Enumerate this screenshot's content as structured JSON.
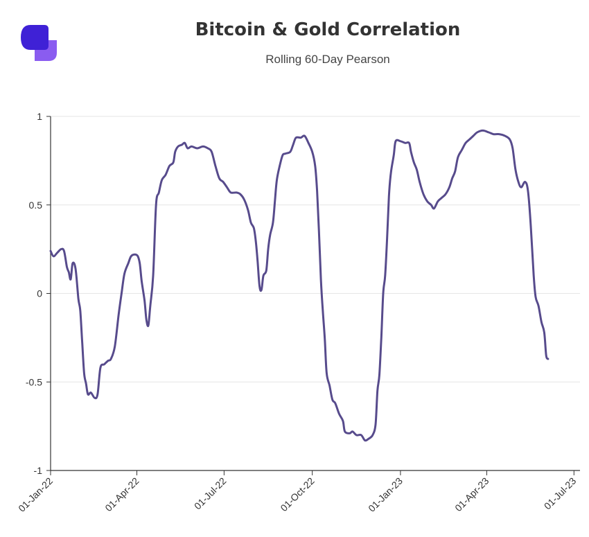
{
  "header": {
    "title": "Bitcoin & Gold Correlation",
    "subtitle": "Rolling 60-Day Pearson"
  },
  "colors": {
    "line": "#574b8c",
    "logo_dark": "#3f21d6",
    "logo_light": "#8a5cf0",
    "grid": "#e6e6e6",
    "axis": "#333333"
  },
  "chart_data": {
    "type": "line",
    "title": "Bitcoin & Gold Correlation",
    "subtitle": "Rolling 60-Day Pearson",
    "xlabel": "",
    "ylabel": "",
    "ylim": [
      -1,
      1
    ],
    "grid": true,
    "y_ticks": [
      1,
      0.5,
      0,
      -0.5,
      -1
    ],
    "y_tick_labels": [
      "1",
      "0.5",
      "0",
      "-0.5",
      "-1"
    ],
    "x_ticks": [
      "2022-01-01",
      "2022-04-01",
      "2022-07-01",
      "2022-10-01",
      "2023-01-01",
      "2023-04-01",
      "2023-07-01"
    ],
    "x_tick_labels": [
      "01-Jan-22",
      "01-Apr-22",
      "01-Jul-22",
      "01-Oct-22",
      "01-Jan-23",
      "01-Apr-23",
      "01-Jul-23"
    ],
    "series": [
      {
        "points": [
          [
            "2022-01-01",
            0.24
          ],
          [
            "2022-01-04",
            0.21
          ],
          [
            "2022-01-08",
            0.23
          ],
          [
            "2022-01-12",
            0.25
          ],
          [
            "2022-01-15",
            0.24
          ],
          [
            "2022-01-18",
            0.15
          ],
          [
            "2022-01-20",
            0.12
          ],
          [
            "2022-01-22",
            0.08
          ],
          [
            "2022-01-24",
            0.17
          ],
          [
            "2022-01-27",
            0.14
          ],
          [
            "2022-01-30",
            -0.03
          ],
          [
            "2022-02-01",
            -0.1
          ],
          [
            "2022-02-03",
            -0.28
          ],
          [
            "2022-02-05",
            -0.45
          ],
          [
            "2022-02-07",
            -0.51
          ],
          [
            "2022-02-09",
            -0.57
          ],
          [
            "2022-02-12",
            -0.56
          ],
          [
            "2022-02-16",
            -0.59
          ],
          [
            "2022-02-19",
            -0.57
          ],
          [
            "2022-02-22",
            -0.42
          ],
          [
            "2022-02-26",
            -0.4
          ],
          [
            "2022-03-02",
            -0.38
          ],
          [
            "2022-03-05",
            -0.37
          ],
          [
            "2022-03-09",
            -0.3
          ],
          [
            "2022-03-13",
            -0.12
          ],
          [
            "2022-03-16",
            0.0
          ],
          [
            "2022-03-19",
            0.11
          ],
          [
            "2022-03-23",
            0.17
          ],
          [
            "2022-03-26",
            0.21
          ],
          [
            "2022-03-30",
            0.22
          ],
          [
            "2022-04-02",
            0.21
          ],
          [
            "2022-04-04",
            0.17
          ],
          [
            "2022-04-06",
            0.07
          ],
          [
            "2022-04-09",
            -0.04
          ],
          [
            "2022-04-11",
            -0.15
          ],
          [
            "2022-04-13",
            -0.18
          ],
          [
            "2022-04-15",
            -0.07
          ],
          [
            "2022-04-18",
            0.1
          ],
          [
            "2022-04-21",
            0.5
          ],
          [
            "2022-04-24",
            0.57
          ],
          [
            "2022-04-27",
            0.64
          ],
          [
            "2022-05-01",
            0.67
          ],
          [
            "2022-05-05",
            0.72
          ],
          [
            "2022-05-09",
            0.74
          ],
          [
            "2022-05-11",
            0.8
          ],
          [
            "2022-05-14",
            0.83
          ],
          [
            "2022-05-18",
            0.84
          ],
          [
            "2022-05-21",
            0.85
          ],
          [
            "2022-05-24",
            0.82
          ],
          [
            "2022-05-28",
            0.83
          ],
          [
            "2022-06-03",
            0.82
          ],
          [
            "2022-06-09",
            0.83
          ],
          [
            "2022-06-14",
            0.82
          ],
          [
            "2022-06-18",
            0.8
          ],
          [
            "2022-06-22",
            0.72
          ],
          [
            "2022-06-26",
            0.65
          ],
          [
            "2022-06-30",
            0.63
          ],
          [
            "2022-07-04",
            0.6
          ],
          [
            "2022-07-08",
            0.57
          ],
          [
            "2022-07-14",
            0.57
          ],
          [
            "2022-07-18",
            0.56
          ],
          [
            "2022-07-22",
            0.53
          ],
          [
            "2022-07-26",
            0.47
          ],
          [
            "2022-07-29",
            0.4
          ],
          [
            "2022-08-01",
            0.37
          ],
          [
            "2022-08-03",
            0.3
          ],
          [
            "2022-08-05",
            0.18
          ],
          [
            "2022-08-07",
            0.04
          ],
          [
            "2022-08-09",
            0.02
          ],
          [
            "2022-08-11",
            0.1
          ],
          [
            "2022-08-14",
            0.13
          ],
          [
            "2022-08-16",
            0.25
          ],
          [
            "2022-08-18",
            0.33
          ],
          [
            "2022-08-21",
            0.4
          ],
          [
            "2022-08-23",
            0.52
          ],
          [
            "2022-08-25",
            0.64
          ],
          [
            "2022-08-28",
            0.72
          ],
          [
            "2022-08-31",
            0.78
          ],
          [
            "2022-09-03",
            0.79
          ],
          [
            "2022-09-08",
            0.8
          ],
          [
            "2022-09-11",
            0.84
          ],
          [
            "2022-09-14",
            0.88
          ],
          [
            "2022-09-19",
            0.88
          ],
          [
            "2022-09-23",
            0.89
          ],
          [
            "2022-09-27",
            0.85
          ],
          [
            "2022-10-01",
            0.8
          ],
          [
            "2022-10-04",
            0.72
          ],
          [
            "2022-10-06",
            0.58
          ],
          [
            "2022-10-08",
            0.35
          ],
          [
            "2022-10-10",
            0.08
          ],
          [
            "2022-10-12",
            -0.1
          ],
          [
            "2022-10-14",
            -0.25
          ],
          [
            "2022-10-16",
            -0.45
          ],
          [
            "2022-10-19",
            -0.52
          ],
          [
            "2022-10-22",
            -0.6
          ],
          [
            "2022-10-25",
            -0.62
          ],
          [
            "2022-10-29",
            -0.68
          ],
          [
            "2022-11-02",
            -0.72
          ],
          [
            "2022-11-04",
            -0.78
          ],
          [
            "2022-11-09",
            -0.79
          ],
          [
            "2022-11-12",
            -0.78
          ],
          [
            "2022-11-16",
            -0.8
          ],
          [
            "2022-11-21",
            -0.8
          ],
          [
            "2022-11-25",
            -0.83
          ],
          [
            "2022-11-29",
            -0.82
          ],
          [
            "2022-12-03",
            -0.8
          ],
          [
            "2022-12-06",
            -0.74
          ],
          [
            "2022-12-08",
            -0.55
          ],
          [
            "2022-12-10",
            -0.46
          ],
          [
            "2022-12-12",
            -0.25
          ],
          [
            "2022-12-14",
            0.0
          ],
          [
            "2022-12-16",
            0.1
          ],
          [
            "2022-12-18",
            0.3
          ],
          [
            "2022-12-20",
            0.55
          ],
          [
            "2022-12-22",
            0.68
          ],
          [
            "2022-12-25",
            0.78
          ],
          [
            "2022-12-27",
            0.86
          ],
          [
            "2023-01-01",
            0.86
          ],
          [
            "2023-01-06",
            0.85
          ],
          [
            "2023-01-10",
            0.85
          ],
          [
            "2023-01-12",
            0.8
          ],
          [
            "2023-01-15",
            0.74
          ],
          [
            "2023-01-18",
            0.7
          ],
          [
            "2023-01-21",
            0.63
          ],
          [
            "2023-01-25",
            0.56
          ],
          [
            "2023-01-29",
            0.52
          ],
          [
            "2023-02-02",
            0.5
          ],
          [
            "2023-02-05",
            0.48
          ],
          [
            "2023-02-09",
            0.52
          ],
          [
            "2023-02-13",
            0.54
          ],
          [
            "2023-02-17",
            0.56
          ],
          [
            "2023-02-21",
            0.6
          ],
          [
            "2023-02-24",
            0.65
          ],
          [
            "2023-02-27",
            0.69
          ],
          [
            "2023-03-02",
            0.77
          ],
          [
            "2023-03-06",
            0.81
          ],
          [
            "2023-03-10",
            0.85
          ],
          [
            "2023-03-14",
            0.87
          ],
          [
            "2023-03-18",
            0.89
          ],
          [
            "2023-03-22",
            0.91
          ],
          [
            "2023-03-28",
            0.92
          ],
          [
            "2023-04-03",
            0.91
          ],
          [
            "2023-04-08",
            0.9
          ],
          [
            "2023-04-14",
            0.9
          ],
          [
            "2023-04-20",
            0.89
          ],
          [
            "2023-04-25",
            0.87
          ],
          [
            "2023-04-28",
            0.82
          ],
          [
            "2023-05-01",
            0.7
          ],
          [
            "2023-05-04",
            0.63
          ],
          [
            "2023-05-07",
            0.6
          ],
          [
            "2023-05-11",
            0.63
          ],
          [
            "2023-05-14",
            0.58
          ],
          [
            "2023-05-17",
            0.38
          ],
          [
            "2023-05-20",
            0.1
          ],
          [
            "2023-05-22",
            -0.02
          ],
          [
            "2023-05-25",
            -0.07
          ],
          [
            "2023-05-28",
            -0.16
          ],
          [
            "2023-05-31",
            -0.22
          ],
          [
            "2023-06-02",
            -0.35
          ],
          [
            "2023-06-04",
            -0.37
          ]
        ]
      }
    ]
  }
}
